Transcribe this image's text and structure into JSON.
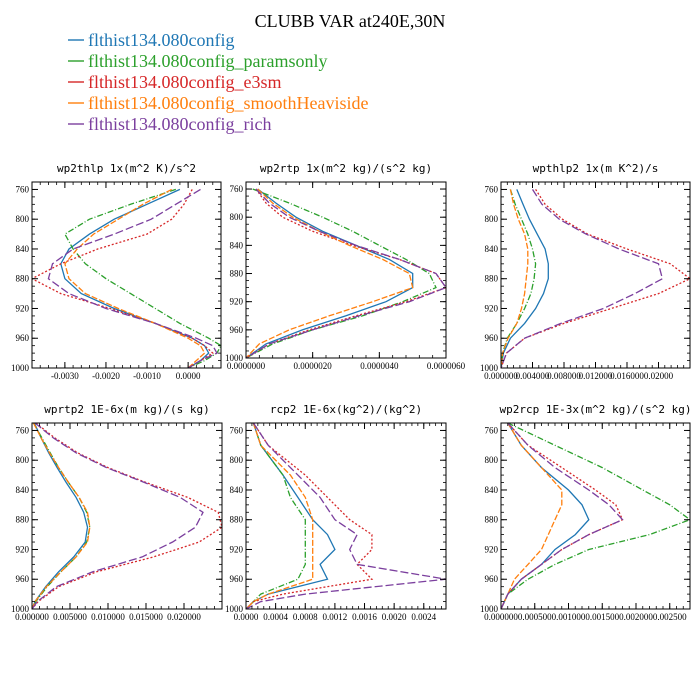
{
  "figure": {
    "title": "CLUBB VAR at240E,30N",
    "series": [
      {
        "name": "flthist134.080config",
        "color": "#1f77b4",
        "dash": ""
      },
      {
        "name": "flthist134.080config_paramsonly",
        "color": "#2ca02c",
        "dash": "6,2,1,2"
      },
      {
        "name": "flthist134.080config_e3sm",
        "color": "#d62728",
        "dash": "2,2"
      },
      {
        "name": "flthist134.080config_smoothHeaviside",
        "color": "#ff7f0e",
        "dash": "6,2"
      },
      {
        "name": "flthist134.080config_rich",
        "color": "#7b3f9e",
        "dash": "8,3"
      }
    ]
  },
  "chart_data": [
    {
      "type": "line",
      "title": "wp2thlp  1x(m^2 K)/s^2",
      "xlim": [
        -0.0038,
        0.0008
      ],
      "ylim": [
        1000,
        750
      ],
      "xticks": [
        -0.003,
        -0.002,
        -0.001,
        0.0
      ],
      "xtick_labels": [
        "-0.0030",
        "-0.0020",
        "-0.0010",
        "0.0000"
      ],
      "yticks": [
        760,
        800,
        840,
        880,
        920,
        960,
        1000
      ],
      "y": [
        760,
        780,
        800,
        820,
        840,
        860,
        880,
        900,
        920,
        940,
        960,
        970,
        980,
        990,
        1000
      ],
      "series": [
        {
          "name": "flthist134.080config",
          "values": [
            -0.0002,
            -0.001,
            -0.0018,
            -0.0024,
            -0.0029,
            -0.0031,
            -0.003,
            -0.0026,
            -0.0018,
            -0.0008,
            0.0001,
            0.0004,
            0.0005,
            0.0003,
            0.0
          ]
        },
        {
          "name": "flthist134.080config_paramsonly",
          "values": [
            -0.0003,
            -0.0014,
            -0.0024,
            -0.003,
            -0.0028,
            -0.0025,
            -0.002,
            -0.0014,
            -0.0008,
            -0.0002,
            0.0005,
            0.0008,
            0.0007,
            0.0004,
            0.0
          ]
        },
        {
          "name": "flthist134.080config_e3sm",
          "values": [
            0.0001,
            -0.0001,
            -0.0004,
            -0.001,
            -0.0022,
            -0.0031,
            -0.0038,
            -0.0031,
            -0.0019,
            -0.0008,
            0.0001,
            0.0004,
            0.0006,
            0.0003,
            0.0
          ]
        },
        {
          "name": "flthist134.080config_smoothHeaviside",
          "values": [
            -0.0004,
            -0.0011,
            -0.0017,
            -0.0023,
            -0.0027,
            -0.003,
            -0.0029,
            -0.0025,
            -0.0017,
            -0.0008,
            0.0,
            0.0003,
            0.0004,
            0.0002,
            0.0
          ]
        },
        {
          "name": "flthist134.080config_rich",
          "values": [
            0.0003,
            -0.0003,
            -0.0009,
            -0.0018,
            -0.0028,
            -0.0033,
            -0.0034,
            -0.0029,
            -0.002,
            -0.0008,
            0.0002,
            0.0006,
            0.0007,
            0.0003,
            0.0
          ]
        }
      ]
    },
    {
      "type": "line",
      "title": "wp2rtp  1x(m^2 kg)/(s^2 kg)",
      "xlim": [
        0.0,
        6e-06
      ],
      "ylim": [
        1000,
        750
      ],
      "xticks": [
        0.0,
        2e-06,
        4e-06,
        6e-06
      ],
      "xtick_labels": [
        "0.0000000",
        "0.0000020",
        "0.0000040",
        "0.0000060"
      ],
      "yticks": [
        760,
        800,
        840,
        880,
        920,
        960,
        1000
      ],
      "y": [
        760,
        780,
        800,
        820,
        840,
        860,
        880,
        900,
        920,
        940,
        960,
        980,
        1000
      ],
      "series": [
        {
          "name": "flthist134.080config",
          "values": [
            3.5e-07,
            9e-07,
            1.5e-06,
            2.3e-06,
            3.3e-06,
            4.3e-06,
            5e-06,
            5e-06,
            4.2e-06,
            3e-06,
            1.7e-06,
            6e-07,
            0.0
          ]
        },
        {
          "name": "flthist134.080config_paramsonly",
          "values": [
            2e-07,
            1.3e-06,
            2.3e-06,
            3.2e-06,
            4e-06,
            4.8e-06,
            5.5e-06,
            5.7e-06,
            4.7e-06,
            3.5e-06,
            2e-06,
            8e-07,
            0.0
          ]
        },
        {
          "name": "flthist134.080config_e3sm",
          "values": [
            3e-07,
            6e-07,
            1.1e-06,
            2e-06,
            3.2e-06,
            4.6e-06,
            5.7e-06,
            6e-06,
            4.8e-06,
            3.3e-06,
            1.9e-06,
            7e-07,
            0.0
          ]
        },
        {
          "name": "flthist134.080config_smoothHeaviside",
          "values": [
            3.5e-07,
            8e-07,
            1.4e-06,
            2.2e-06,
            3.1e-06,
            4.1e-06,
            4.9e-06,
            5e-06,
            3.8e-06,
            2.5e-06,
            1.3e-06,
            4e-07,
            0.0
          ]
        },
        {
          "name": "flthist134.080config_rich",
          "values": [
            3e-07,
            7e-07,
            1.3e-06,
            2.2e-06,
            3.3e-06,
            4.6e-06,
            5.7e-06,
            6e-06,
            4.9e-06,
            3.4e-06,
            2e-06,
            7e-07,
            0.0
          ]
        }
      ]
    },
    {
      "type": "line",
      "title": "wpthlp2  1x(m K^2)/s",
      "xlim": [
        0.0,
        0.024
      ],
      "ylim": [
        1000,
        750
      ],
      "xticks": [
        0.0,
        0.004,
        0.008,
        0.012,
        0.016,
        0.02
      ],
      "xtick_labels": [
        "0.000000",
        "0.004000",
        "0.008000",
        "0.012000",
        "0.016000",
        "0.02000"
      ],
      "yticks": [
        760,
        800,
        840,
        880,
        920,
        960,
        1000
      ],
      "y": [
        760,
        780,
        800,
        820,
        840,
        860,
        880,
        900,
        920,
        940,
        960,
        980,
        1000
      ],
      "series": [
        {
          "name": "flthist134.080config",
          "values": [
            0.002,
            0.0028,
            0.0036,
            0.0046,
            0.0056,
            0.006,
            0.006,
            0.0054,
            0.0044,
            0.003,
            0.0012,
            0.0003,
            0.0
          ]
        },
        {
          "name": "flthist134.080config_paramsonly",
          "values": [
            0.0012,
            0.0018,
            0.0026,
            0.0034,
            0.004,
            0.0044,
            0.0042,
            0.0038,
            0.003,
            0.002,
            0.0008,
            0.0002,
            0.0
          ]
        },
        {
          "name": "flthist134.080config_e3sm",
          "values": [
            0.0044,
            0.0056,
            0.0078,
            0.011,
            0.016,
            0.0215,
            0.024,
            0.02,
            0.014,
            0.008,
            0.003,
            0.0007,
            0.0
          ]
        },
        {
          "name": "flthist134.080config_smoothHeaviside",
          "values": [
            0.0012,
            0.0016,
            0.0022,
            0.003,
            0.0034,
            0.0034,
            0.0032,
            0.003,
            0.0026,
            0.002,
            0.0009,
            0.0002,
            0.0
          ]
        },
        {
          "name": "flthist134.080config_rich",
          "values": [
            0.004,
            0.0052,
            0.0074,
            0.0108,
            0.015,
            0.02,
            0.0205,
            0.017,
            0.013,
            0.0076,
            0.003,
            0.0007,
            0.0
          ]
        }
      ]
    },
    {
      "type": "line",
      "title": "wprtp2  1E-6x(m kg)/(s kg)",
      "xlim": [
        0.0,
        0.025
      ],
      "ylim": [
        1000,
        750
      ],
      "xticks": [
        0.0,
        0.005,
        0.01,
        0.015,
        0.02
      ],
      "xtick_labels": [
        "0.000000",
        "0.005000",
        "0.010000",
        "0.015000",
        "0.020000"
      ],
      "yticks": [
        760,
        800,
        840,
        880,
        920,
        960,
        1000
      ],
      "y": [
        750,
        770,
        790,
        810,
        830,
        850,
        870,
        890,
        910,
        930,
        950,
        970,
        990,
        1000
      ],
      "series": [
        {
          "name": "flthist134.080config",
          "values": [
            0.0003,
            0.0012,
            0.0022,
            0.0033,
            0.0045,
            0.0058,
            0.0068,
            0.0073,
            0.007,
            0.0055,
            0.0035,
            0.0018,
            0.0004,
            0.0
          ]
        },
        {
          "name": "flthist134.080config_paramsonly",
          "values": [
            0.0002,
            0.0013,
            0.0024,
            0.0035,
            0.0048,
            0.0062,
            0.0072,
            0.0076,
            0.0072,
            0.0058,
            0.0038,
            0.002,
            0.0005,
            0.0
          ]
        },
        {
          "name": "flthist134.080config_e3sm",
          "values": [
            0.0005,
            0.003,
            0.006,
            0.01,
            0.015,
            0.0205,
            0.0245,
            0.025,
            0.022,
            0.016,
            0.0085,
            0.0035,
            0.0008,
            0.0
          ]
        },
        {
          "name": "flthist134.080config_smoothHeaviside",
          "values": [
            0.0002,
            0.0012,
            0.0023,
            0.0035,
            0.0048,
            0.0062,
            0.0073,
            0.0076,
            0.0073,
            0.0058,
            0.0038,
            0.0019,
            0.0004,
            0.0
          ]
        },
        {
          "name": "flthist134.080config_rich",
          "values": [
            0.0004,
            0.0028,
            0.0058,
            0.0098,
            0.0148,
            0.0195,
            0.0225,
            0.0215,
            0.0185,
            0.0145,
            0.008,
            0.0032,
            0.0007,
            0.0
          ]
        }
      ]
    },
    {
      "type": "line",
      "title": "rcp2  1E-6x(kg^2)/(kg^2)",
      "xlim": [
        0.0,
        0.0027
      ],
      "ylim": [
        1000,
        750
      ],
      "xticks": [
        0.0,
        0.0004,
        0.0008,
        0.0012,
        0.0016,
        0.002,
        0.0024
      ],
      "xtick_labels": [
        "0.0000",
        "0.0004",
        "0.0008",
        "0.0012",
        "0.0016",
        "0.0020",
        "0.0024"
      ],
      "yticks": [
        760,
        800,
        840,
        880,
        920,
        960,
        1000
      ],
      "y": [
        750,
        780,
        820,
        850,
        880,
        900,
        920,
        940,
        960,
        980,
        990,
        1000
      ],
      "series": [
        {
          "name": "flthist134.080config",
          "values": [
            0.0001,
            0.0002,
            0.0005,
            0.0007,
            0.0009,
            0.0011,
            0.0012,
            0.001,
            0.0011,
            0.0003,
            0.0001,
            0.0
          ]
        },
        {
          "name": "flthist134.080config_paramsonly",
          "values": [
            0.0001,
            0.0002,
            0.0005,
            0.0006,
            0.0008,
            0.0008,
            0.0008,
            0.0008,
            0.0007,
            0.0002,
            0.0001,
            0.0
          ]
        },
        {
          "name": "flthist134.080config_e3sm",
          "values": [
            0.0001,
            0.0003,
            0.0008,
            0.0011,
            0.0014,
            0.0017,
            0.0017,
            0.0015,
            0.0017,
            0.0005,
            0.0001,
            0.0
          ]
        },
        {
          "name": "flthist134.080config_smoothHeaviside",
          "values": [
            0.0001,
            0.0002,
            0.0006,
            0.0008,
            0.0009,
            0.0009,
            0.0009,
            0.0009,
            0.0009,
            0.0003,
            0.0001,
            0.0
          ]
        },
        {
          "name": "flthist134.080config_rich",
          "values": [
            0.0001,
            0.0003,
            0.0007,
            0.001,
            0.0012,
            0.0015,
            0.0014,
            0.0015,
            0.0027,
            0.0008,
            0.0002,
            0.0
          ]
        }
      ]
    },
    {
      "type": "line",
      "title": "wp2rcp  1E-3x(m^2 kg)/(s^2 kg)",
      "xlim": [
        0.0,
        0.0028
      ],
      "ylim": [
        1000,
        750
      ],
      "xticks": [
        0.0,
        0.0005,
        0.001,
        0.0015,
        0.002,
        0.0025
      ],
      "xtick_labels": [
        "0.000000",
        "0.000500",
        "0.001000",
        "0.001500",
        "0.002000",
        "0.002500"
      ],
      "yticks": [
        760,
        800,
        840,
        880,
        920,
        960,
        1000
      ],
      "y": [
        750,
        780,
        810,
        840,
        860,
        880,
        900,
        920,
        940,
        960,
        980,
        1000
      ],
      "series": [
        {
          "name": "flthist134.080config",
          "values": [
            0.0001,
            0.0003,
            0.0006,
            0.001,
            0.0012,
            0.0013,
            0.0011,
            0.0008,
            0.0006,
            0.0003,
            0.0001,
            0.0
          ]
        },
        {
          "name": "flthist134.080config_paramsonly",
          "values": [
            0.0001,
            0.0008,
            0.0015,
            0.0021,
            0.0025,
            0.0028,
            0.0022,
            0.0013,
            0.0008,
            0.0004,
            0.0001,
            0.0
          ]
        },
        {
          "name": "flthist134.080config_e3sm",
          "values": [
            0.0001,
            0.0004,
            0.0009,
            0.0014,
            0.0017,
            0.0018,
            0.0013,
            0.0009,
            0.0006,
            0.0003,
            0.0001,
            0.0
          ]
        },
        {
          "name": "flthist134.080config_smoothHeaviside",
          "values": [
            0.0001,
            0.0003,
            0.0006,
            0.0009,
            0.0009,
            0.0008,
            0.0007,
            0.0006,
            0.0004,
            0.0002,
            0.0001,
            0.0
          ]
        },
        {
          "name": "flthist134.080config_rich",
          "values": [
            0.0001,
            0.0004,
            0.0008,
            0.0013,
            0.0016,
            0.0018,
            0.0013,
            0.0009,
            0.0006,
            0.0003,
            0.0001,
            0.0
          ]
        }
      ]
    }
  ]
}
